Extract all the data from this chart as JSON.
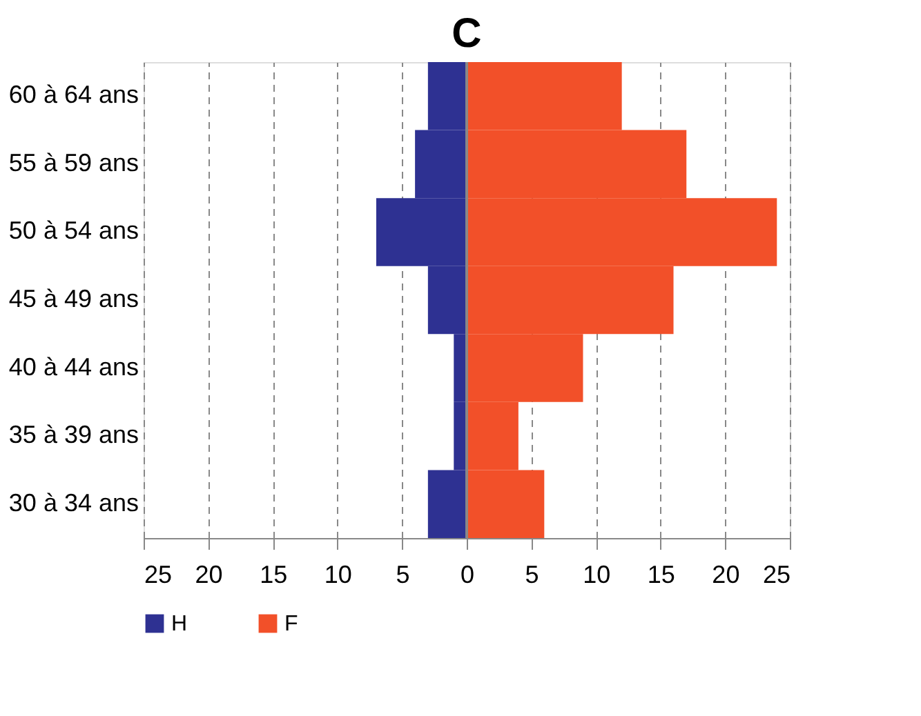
{
  "chart_data": {
    "type": "bar",
    "title": "C",
    "orientation": "horizontal",
    "categories": [
      "60 à 64 ans",
      "55 à 59 ans",
      "50 à 54 ans",
      "45 à 49 ans",
      "40 à 44 ans",
      "35 à 39 ans",
      "30 à 34 ans"
    ],
    "series": [
      {
        "name": "H",
        "color": "#2e3192",
        "values": [
          -3,
          -4,
          -7,
          -3,
          -1,
          -1,
          -3
        ]
      },
      {
        "name": "F",
        "color": "#f25029",
        "values": [
          12,
          17,
          24,
          16,
          9,
          4,
          6
        ]
      }
    ],
    "xlim": [
      -25,
      25
    ],
    "xticks": [
      {
        "value": -25,
        "label": "25"
      },
      {
        "value": -20,
        "label": "20"
      },
      {
        "value": -15,
        "label": "15"
      },
      {
        "value": -10,
        "label": "10"
      },
      {
        "value": -5,
        "label": "5"
      },
      0,
      5,
      10,
      15,
      20,
      25
    ],
    "stacked": true,
    "grid": "x",
    "legend": "bottom"
  }
}
